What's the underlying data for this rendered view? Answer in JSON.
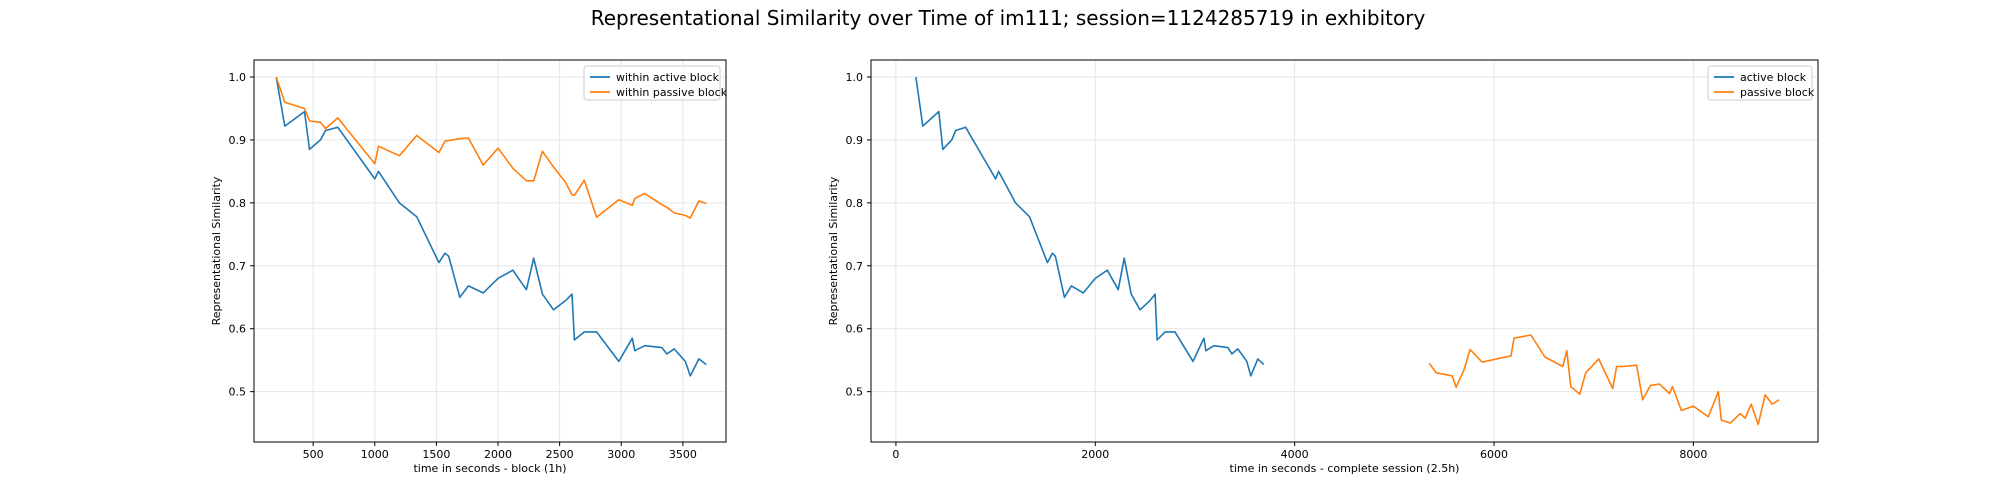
{
  "figure": {
    "suptitle": "Representational Similarity over Time of im111; session=1124285719 in exhibitory"
  },
  "colors": {
    "active": "#1f77b4",
    "passive": "#ff7f0e",
    "grid": "#e6e6e6",
    "axis": "#000000"
  },
  "chart_data": [
    {
      "type": "line",
      "title": "",
      "xlabel": "time in seconds   -   block (1h)",
      "ylabel": "Representational Similarity",
      "xlim": [
        20,
        3850
      ],
      "ylim": [
        0.42,
        1.027
      ],
      "xticks": [
        500,
        1000,
        1500,
        2000,
        2500,
        3000,
        3500
      ],
      "xtick_labels": [
        "500",
        "1000",
        "1500",
        "2000",
        "2500",
        "3000",
        "3500"
      ],
      "yticks": [
        0.5,
        0.6,
        0.7,
        0.8,
        0.9,
        1.0
      ],
      "ytick_labels": [
        "0.5",
        "0.6",
        "0.7",
        "0.8",
        "0.9",
        "1.0"
      ],
      "grid": true,
      "legend_position": "top-right",
      "series": [
        {
          "name": "within active block",
          "color": "#1f77b4",
          "x": [
            200,
            270,
            430,
            470,
            560,
            600,
            700,
            1000,
            1030,
            1200,
            1340,
            1520,
            1570,
            1600,
            1690,
            1760,
            1880,
            2000,
            2120,
            2230,
            2290,
            2360,
            2450,
            2550,
            2600,
            2620,
            2700,
            2800,
            2980,
            3090,
            3110,
            3190,
            3330,
            3370,
            3430,
            3520,
            3560,
            3630,
            3690
          ],
          "y": [
            1.0,
            0.922,
            0.945,
            0.885,
            0.9,
            0.915,
            0.92,
            0.838,
            0.85,
            0.8,
            0.778,
            0.705,
            0.72,
            0.715,
            0.65,
            0.668,
            0.657,
            0.68,
            0.693,
            0.662,
            0.712,
            0.655,
            0.63,
            0.645,
            0.655,
            0.582,
            0.595,
            0.595,
            0.548,
            0.585,
            0.565,
            0.573,
            0.57,
            0.56,
            0.568,
            0.548,
            0.525,
            0.552,
            0.543
          ]
        },
        {
          "name": "within passive block",
          "color": "#ff7f0e",
          "x": [
            200,
            270,
            430,
            470,
            560,
            600,
            700,
            1000,
            1030,
            1200,
            1340,
            1520,
            1570,
            1690,
            1760,
            1880,
            2000,
            2120,
            2230,
            2290,
            2360,
            2450,
            2550,
            2600,
            2620,
            2700,
            2800,
            2980,
            3090,
            3110,
            3190,
            3330,
            3370,
            3430,
            3520,
            3560,
            3630,
            3690
          ],
          "y": [
            1.0,
            0.96,
            0.95,
            0.93,
            0.928,
            0.918,
            0.935,
            0.862,
            0.89,
            0.875,
            0.907,
            0.88,
            0.898,
            0.902,
            0.903,
            0.86,
            0.887,
            0.855,
            0.835,
            0.835,
            0.882,
            0.857,
            0.832,
            0.813,
            0.812,
            0.836,
            0.777,
            0.805,
            0.796,
            0.807,
            0.815,
            0.797,
            0.793,
            0.784,
            0.78,
            0.776,
            0.803,
            0.799
          ]
        }
      ]
    },
    {
      "type": "line",
      "title": "",
      "xlabel": "time in seconds   -   complete session (2.5h)",
      "ylabel": "Representational Similarity",
      "xlim": [
        -250,
        9250
      ],
      "ylim": [
        0.42,
        1.027
      ],
      "xticks": [
        0,
        2000,
        4000,
        6000,
        8000
      ],
      "xtick_labels": [
        "0",
        "2000",
        "4000",
        "6000",
        "8000"
      ],
      "yticks": [
        0.5,
        0.6,
        0.7,
        0.8,
        0.9,
        1.0
      ],
      "ytick_labels": [
        "0.5",
        "0.6",
        "0.7",
        "0.8",
        "0.9",
        "1.0"
      ],
      "grid": true,
      "legend_position": "top-right",
      "series": [
        {
          "name": "active block",
          "color": "#1f77b4",
          "x": [
            200,
            270,
            430,
            470,
            560,
            600,
            700,
            1000,
            1030,
            1200,
            1340,
            1520,
            1570,
            1600,
            1690,
            1760,
            1880,
            2000,
            2120,
            2230,
            2290,
            2360,
            2450,
            2550,
            2600,
            2620,
            2700,
            2800,
            2980,
            3090,
            3110,
            3190,
            3330,
            3370,
            3430,
            3520,
            3560,
            3630,
            3690
          ],
          "y": [
            1.0,
            0.922,
            0.945,
            0.885,
            0.9,
            0.915,
            0.92,
            0.838,
            0.85,
            0.8,
            0.778,
            0.705,
            0.72,
            0.715,
            0.65,
            0.668,
            0.657,
            0.68,
            0.693,
            0.662,
            0.712,
            0.655,
            0.63,
            0.645,
            0.655,
            0.582,
            0.595,
            0.595,
            0.548,
            0.585,
            0.565,
            0.573,
            0.57,
            0.56,
            0.568,
            0.548,
            0.525,
            0.552,
            0.543
          ]
        },
        {
          "name": "passive block",
          "color": "#ff7f0e",
          "x": [
            5350,
            5420,
            5580,
            5620,
            5700,
            5760,
            5880,
            6170,
            6200,
            6370,
            6510,
            6690,
            6730,
            6770,
            6860,
            6920,
            7050,
            7190,
            7230,
            7300,
            7430,
            7490,
            7570,
            7660,
            7760,
            7790,
            7880,
            8000,
            8150,
            8250,
            8280,
            8370,
            8470,
            8520,
            8580,
            8650,
            8720,
            8790,
            8860
          ],
          "y": [
            0.545,
            0.53,
            0.525,
            0.507,
            0.535,
            0.567,
            0.547,
            0.557,
            0.585,
            0.59,
            0.555,
            0.54,
            0.565,
            0.508,
            0.496,
            0.53,
            0.552,
            0.505,
            0.54,
            0.54,
            0.542,
            0.487,
            0.51,
            0.512,
            0.497,
            0.508,
            0.47,
            0.477,
            0.46,
            0.5,
            0.455,
            0.45,
            0.465,
            0.458,
            0.48,
            0.448,
            0.495,
            0.48,
            0.487
          ]
        }
      ]
    }
  ]
}
